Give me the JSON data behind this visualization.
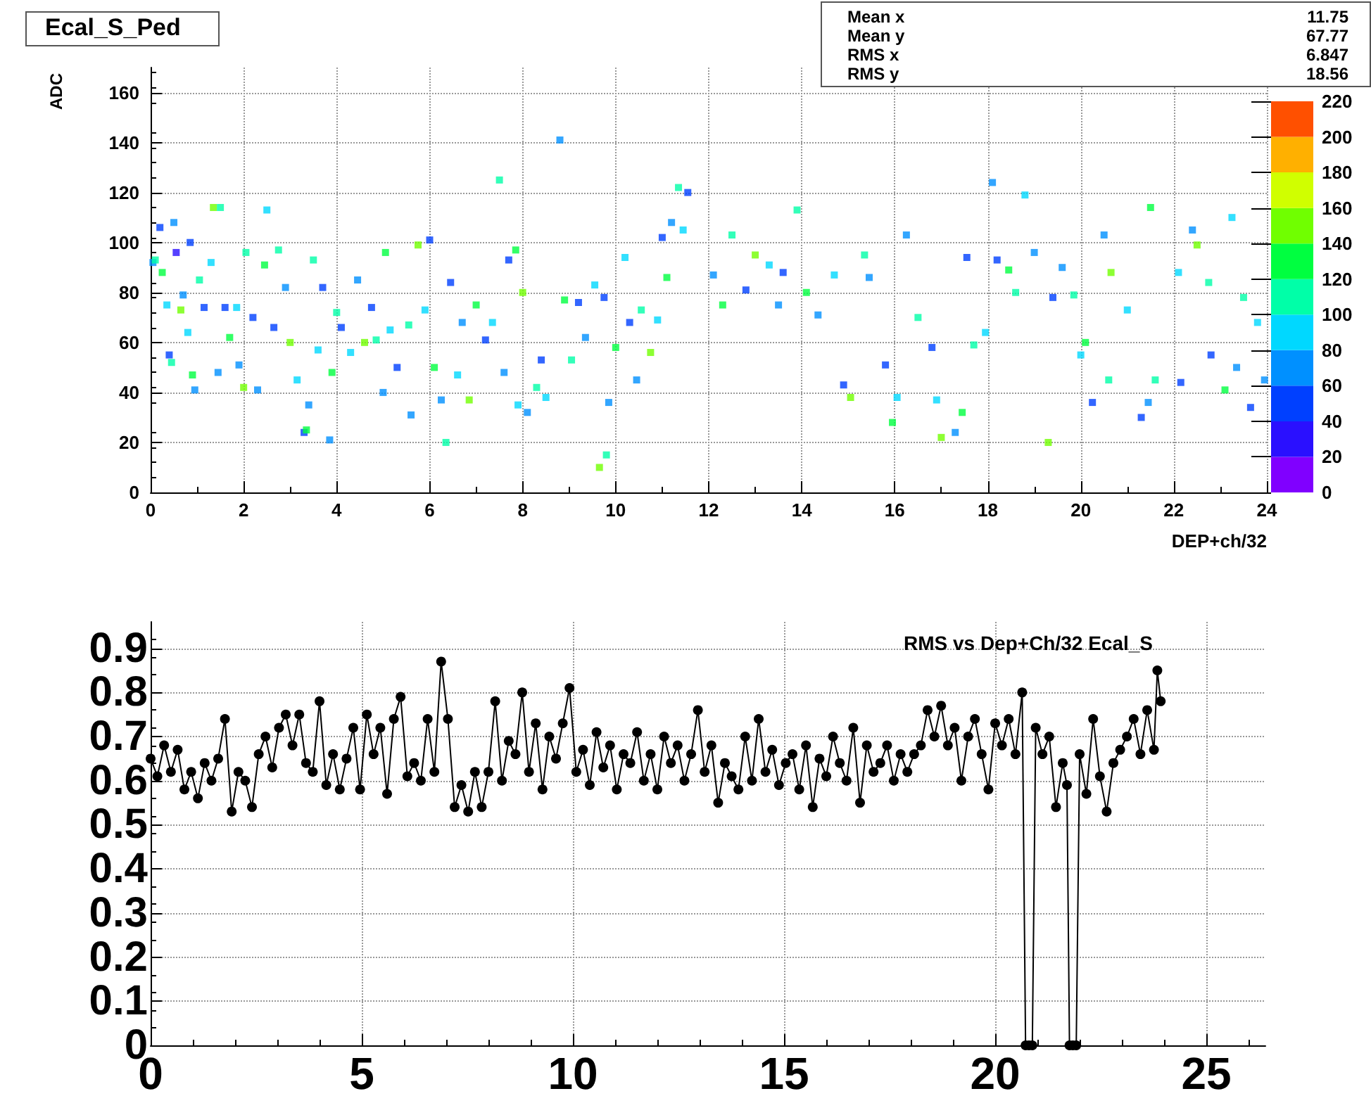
{
  "chart_data": [
    {
      "type": "scatter",
      "title": "Ecal_S_Ped",
      "xlabel": "DEP+ch/32",
      "ylabel": "ADC",
      "marker": "square",
      "grid": true,
      "xlim": [
        0,
        24
      ],
      "xticks": [
        0,
        2,
        4,
        6,
        8,
        10,
        12,
        14,
        16,
        18,
        20,
        22,
        24
      ],
      "ylim": [
        0,
        170
      ],
      "yticks": [
        0,
        20,
        40,
        60,
        80,
        100,
        120,
        140,
        160
      ],
      "clim": [
        0,
        220
      ],
      "cticks": [
        0,
        20,
        40,
        60,
        80,
        100,
        120,
        140,
        160,
        180,
        200,
        220
      ],
      "annotations": [
        "Mean x",
        "11.75",
        "Mean y",
        "67.77",
        "RMS x",
        "6.847",
        "RMS y",
        "18.56"
      ],
      "x": [
        0.05,
        0.1,
        0.2,
        0.25,
        0.35,
        0.4,
        0.45,
        0.5,
        0.55,
        0.65,
        0.7,
        0.8,
        0.85,
        0.9,
        0.95,
        1.05,
        1.15,
        1.3,
        1.35,
        1.45,
        1.5,
        1.6,
        1.7,
        1.85,
        1.9,
        2.0,
        2.05,
        2.2,
        2.3,
        2.45,
        2.5,
        2.65,
        2.75,
        2.9,
        3.0,
        3.15,
        3.3,
        3.35,
        3.4,
        3.5,
        3.6,
        3.7,
        3.85,
        3.9,
        4.0,
        4.1,
        4.3,
        4.45,
        4.6,
        4.75,
        4.85,
        5.0,
        5.05,
        5.15,
        5.3,
        5.55,
        5.6,
        5.75,
        5.9,
        6.0,
        6.1,
        6.25,
        6.35,
        6.45,
        6.6,
        6.7,
        6.85,
        7.0,
        7.2,
        7.35,
        7.5,
        7.6,
        7.7,
        7.85,
        7.9,
        8.0,
        8.1,
        8.3,
        8.4,
        8.5,
        8.8,
        8.9,
        9.05,
        9.2,
        9.35,
        9.55,
        9.65,
        9.75,
        9.8,
        9.85,
        10.0,
        10.2,
        10.3,
        10.45,
        10.55,
        10.75,
        10.9,
        11.0,
        11.1,
        11.2,
        11.35,
        11.45,
        11.55,
        12.1,
        12.3,
        12.5,
        12.8,
        13.0,
        13.3,
        13.5,
        13.6,
        13.9,
        14.1,
        14.35,
        14.7,
        14.9,
        15.05,
        15.35,
        15.45,
        15.8,
        15.95,
        16.05,
        16.25,
        16.5,
        16.8,
        16.9,
        17.0,
        17.3,
        17.45,
        17.55,
        17.7,
        17.95,
        18.1,
        18.2,
        18.45,
        18.6,
        18.8,
        19.0,
        19.3,
        19.4,
        19.6,
        19.85,
        20.0,
        20.1,
        20.25,
        20.5,
        20.6,
        20.65,
        21.0,
        21.3,
        21.45,
        21.5,
        21.6,
        22.1,
        22.15,
        22.4,
        22.5,
        22.75,
        22.8,
        23.1,
        23.25,
        23.35,
        23.5,
        23.65,
        23.8,
        23.95
      ],
      "values": [
        92,
        93,
        106,
        88,
        75,
        55,
        52,
        108,
        96,
        73,
        79,
        64,
        100,
        47,
        41,
        85,
        74,
        92,
        114,
        48,
        114,
        74,
        62,
        74,
        51,
        42,
        96,
        70,
        41,
        91,
        113,
        66,
        97,
        82,
        60,
        45,
        24,
        25,
        35,
        93,
        57,
        82,
        21,
        48,
        72,
        66,
        56,
        85,
        60,
        74,
        61,
        40,
        96,
        65,
        50,
        67,
        31,
        99,
        73,
        101,
        50,
        37,
        20,
        84,
        47,
        68,
        37,
        75,
        61,
        68,
        125,
        48,
        93,
        97,
        35,
        80,
        32,
        42,
        53,
        38,
        141,
        77,
        53,
        76,
        62,
        83,
        10,
        78,
        15,
        36,
        58,
        94,
        68,
        45,
        73,
        56,
        69,
        102,
        86,
        108,
        122,
        105,
        120,
        87,
        75,
        103,
        81,
        95,
        91,
        75,
        88,
        113,
        80,
        71,
        87,
        43,
        38,
        95,
        86,
        51,
        28,
        38,
        103,
        70,
        58,
        37,
        22,
        24,
        32,
        94,
        59,
        64,
        124,
        93,
        89,
        80,
        119,
        96,
        20,
        78,
        90,
        79,
        55,
        60,
        36,
        103,
        45,
        88,
        73,
        30,
        36,
        114,
        45,
        88,
        44,
        105,
        99,
        84,
        55,
        41,
        110,
        50,
        78,
        34,
        68,
        45
      ],
      "cvalues": [
        60,
        100,
        40,
        120,
        80,
        40,
        100,
        60,
        30,
        140,
        60,
        80,
        40,
        120,
        60,
        100,
        40,
        80,
        140,
        60,
        100,
        40,
        120,
        80,
        60,
        140,
        100,
        40,
        60,
        120,
        80,
        40,
        100,
        60,
        140,
        80,
        40,
        120,
        60,
        100,
        80,
        40,
        60,
        120,
        100,
        40,
        80,
        60,
        140,
        40,
        100,
        60,
        120,
        80,
        40,
        100,
        60,
        140,
        80,
        40,
        120,
        60,
        100,
        40,
        80,
        60,
        140,
        120,
        40,
        80,
        100,
        60,
        40,
        120,
        80,
        140,
        60,
        100,
        40,
        80,
        60,
        120,
        100,
        40,
        60,
        80,
        140,
        40,
        100,
        60,
        120,
        80,
        40,
        60,
        100,
        140,
        80,
        40,
        120,
        60,
        100,
        80,
        40,
        60,
        120,
        100,
        40,
        140,
        80,
        60,
        40,
        100,
        120,
        60,
        80,
        40,
        140,
        100,
        60,
        40,
        120,
        80,
        60,
        100,
        40,
        80,
        140,
        60,
        120,
        40,
        100,
        80,
        60,
        40,
        120,
        100,
        80,
        60,
        140,
        40,
        60,
        100,
        80,
        120,
        40,
        60,
        100,
        140,
        80,
        40,
        60,
        120,
        100,
        80,
        40,
        60,
        140,
        100,
        40,
        120,
        80,
        60,
        100,
        40,
        80,
        60
      ]
    },
    {
      "type": "line",
      "title": "RMS vs Dep+Ch/32 Ecal_S",
      "marker": "circle",
      "line_style": "solid",
      "grid": true,
      "xlim": [
        0,
        26.4
      ],
      "xticks": [
        0,
        5,
        10,
        15,
        20,
        25
      ],
      "ylim": [
        0,
        0.96
      ],
      "yticks": [
        0,
        0.1,
        0.2,
        0.3,
        0.4,
        0.5,
        0.6,
        0.7,
        0.8,
        0.9
      ],
      "x": [
        0,
        0.16,
        0.32,
        0.48,
        0.64,
        0.8,
        0.96,
        1.12,
        1.28,
        1.44,
        1.6,
        1.76,
        1.92,
        2.08,
        2.24,
        2.4,
        2.56,
        2.72,
        2.88,
        3.04,
        3.2,
        3.36,
        3.52,
        3.68,
        3.84,
        4.0,
        4.16,
        4.32,
        4.48,
        4.64,
        4.8,
        4.96,
        5.12,
        5.28,
        5.44,
        5.6,
        5.76,
        5.92,
        6.08,
        6.24,
        6.4,
        6.56,
        6.72,
        6.88,
        7.04,
        7.2,
        7.36,
        7.52,
        7.68,
        7.84,
        8.0,
        8.16,
        8.32,
        8.48,
        8.64,
        8.8,
        8.96,
        9.12,
        9.28,
        9.44,
        9.6,
        9.76,
        9.92,
        10.08,
        10.24,
        10.4,
        10.56,
        10.72,
        10.88,
        11.04,
        11.2,
        11.36,
        11.52,
        11.68,
        11.84,
        12.0,
        12.16,
        12.32,
        12.48,
        12.64,
        12.8,
        12.96,
        13.12,
        13.28,
        13.44,
        13.6,
        13.76,
        13.92,
        14.08,
        14.24,
        14.4,
        14.56,
        14.72,
        14.88,
        15.04,
        15.2,
        15.36,
        15.52,
        15.68,
        15.84,
        16.0,
        16.16,
        16.32,
        16.48,
        16.64,
        16.8,
        16.96,
        17.12,
        17.28,
        17.44,
        17.6,
        17.76,
        17.92,
        18.08,
        18.24,
        18.4,
        18.56,
        18.72,
        18.88,
        19.04,
        19.2,
        19.36,
        19.52,
        19.68,
        19.84,
        20.0,
        20.16,
        20.32,
        20.48,
        20.64,
        20.72,
        20.8,
        20.88,
        20.96,
        21.12,
        21.28,
        21.44,
        21.6,
        21.7,
        21.76,
        21.84,
        21.92,
        22.0,
        22.16,
        22.32,
        22.48,
        22.64,
        22.8,
        22.96,
        23.12,
        23.28,
        23.44,
        23.6,
        23.76,
        23.84,
        23.92
      ],
      "series": [
        {
          "color": "#000000",
          "values": [
            0.65,
            0.61,
            0.68,
            0.62,
            0.67,
            0.58,
            0.62,
            0.56,
            0.64,
            0.6,
            0.65,
            0.74,
            0.53,
            0.62,
            0.6,
            0.54,
            0.66,
            0.7,
            0.63,
            0.72,
            0.75,
            0.68,
            0.75,
            0.64,
            0.62,
            0.78,
            0.59,
            0.66,
            0.58,
            0.65,
            0.72,
            0.58,
            0.75,
            0.66,
            0.72,
            0.57,
            0.74,
            0.79,
            0.61,
            0.64,
            0.6,
            0.74,
            0.62,
            0.87,
            0.74,
            0.54,
            0.59,
            0.53,
            0.62,
            0.54,
            0.62,
            0.78,
            0.6,
            0.69,
            0.66,
            0.8,
            0.62,
            0.73,
            0.58,
            0.7,
            0.65,
            0.73,
            0.81,
            0.62,
            0.67,
            0.59,
            0.71,
            0.63,
            0.68,
            0.58,
            0.66,
            0.64,
            0.71,
            0.6,
            0.66,
            0.58,
            0.7,
            0.64,
            0.68,
            0.6,
            0.66,
            0.76,
            0.62,
            0.68,
            0.55,
            0.64,
            0.61,
            0.58,
            0.7,
            0.6,
            0.74,
            0.62,
            0.67,
            0.59,
            0.64,
            0.66,
            0.58,
            0.68,
            0.54,
            0.65,
            0.61,
            0.7,
            0.64,
            0.6,
            0.72,
            0.55,
            0.68,
            0.62,
            0.64,
            0.68,
            0.6,
            0.66,
            0.62,
            0.66,
            0.68,
            0.76,
            0.7,
            0.77,
            0.68,
            0.72,
            0.6,
            0.7,
            0.74,
            0.66,
            0.58,
            0.73,
            0.68,
            0.74,
            0.66,
            0.8,
            0,
            0,
            0,
            0.72,
            0.66,
            0.7,
            0.54,
            0.64,
            0.59,
            0,
            0,
            0,
            0.66,
            0.57,
            0.74,
            0.61,
            0.53,
            0.64,
            0.67,
            0.7,
            0.74,
            0.66,
            0.76,
            0.67,
            0.85,
            0.78
          ]
        }
      ]
    }
  ]
}
